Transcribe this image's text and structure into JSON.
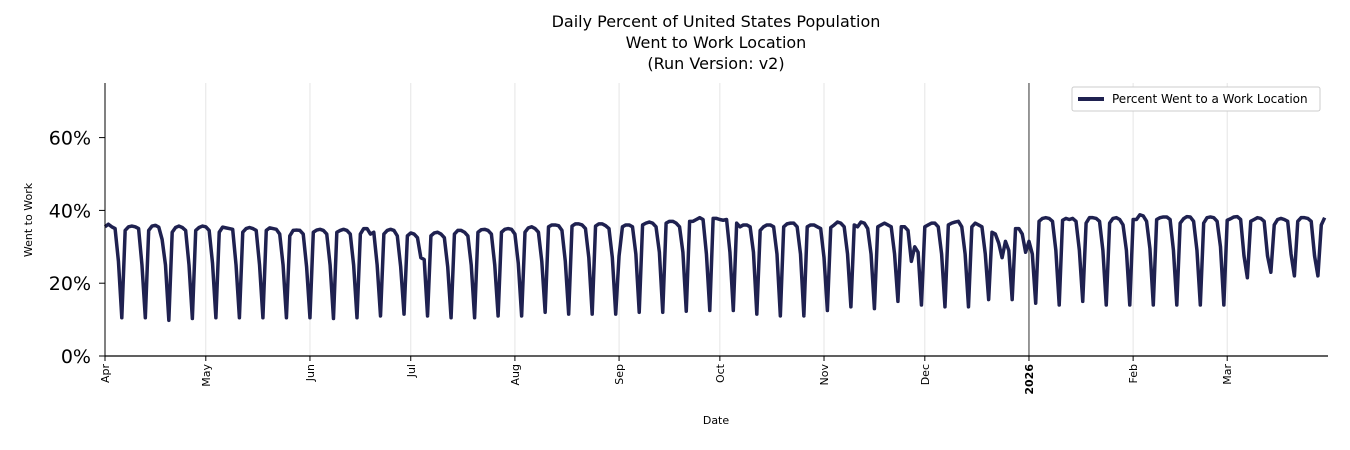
{
  "chart_data": {
    "type": "line",
    "title_lines": [
      "Daily Percent of United States Population",
      "Went to Work Location",
      "(Run Version: v2)"
    ],
    "xlabel": "Date",
    "ylabel": "Went to Work",
    "ylim": [
      0,
      75
    ],
    "yticks": [
      {
        "value": 0,
        "label": "0%"
      },
      {
        "value": 20,
        "label": "20%"
      },
      {
        "value": 40,
        "label": "40%"
      },
      {
        "value": 60,
        "label": "60%"
      }
    ],
    "x_range_days": [
      0,
      364
    ],
    "xticks": [
      {
        "day": 0,
        "label": "Apr",
        "bold": false
      },
      {
        "day": 30,
        "label": "May",
        "bold": false
      },
      {
        "day": 61,
        "label": "Jun",
        "bold": false
      },
      {
        "day": 91,
        "label": "Jul",
        "bold": false
      },
      {
        "day": 122,
        "label": "Aug",
        "bold": false
      },
      {
        "day": 153,
        "label": "Sep",
        "bold": false
      },
      {
        "day": 183,
        "label": "Oct",
        "bold": false
      },
      {
        "day": 214,
        "label": "Nov",
        "bold": false
      },
      {
        "day": 244,
        "label": "Dec",
        "bold": false
      },
      {
        "day": 275,
        "label": "2026",
        "bold": true
      },
      {
        "day": 306,
        "label": "Feb",
        "bold": false
      },
      {
        "day": 334,
        "label": "Mar",
        "bold": false
      }
    ],
    "marker_line_day": 275,
    "grid": "vertical",
    "legend": {
      "position": "top-right",
      "entries": [
        "Percent Went to a Work Location"
      ]
    },
    "series": [
      {
        "name": "Percent Went to a Work Location",
        "color": "#1f2150",
        "start_day": 0,
        "values": [
          35.5,
          36.2,
          35.5,
          35.0,
          26.0,
          10.5,
          34.5,
          35.5,
          35.7,
          35.5,
          35.0,
          25.0,
          10.5,
          34.5,
          35.7,
          35.9,
          35.4,
          32.0,
          25.0,
          9.8,
          34.0,
          35.3,
          35.7,
          35.3,
          34.5,
          25.0,
          10.3,
          34.5,
          35.3,
          35.7,
          35.5,
          34.5,
          25.5,
          10.5,
          34.0,
          35.4,
          35.2,
          35.0,
          34.8,
          25.0,
          10.5,
          34.0,
          35.0,
          35.3,
          35.0,
          34.5,
          25.0,
          10.5,
          34.5,
          35.2,
          35.0,
          34.8,
          33.5,
          25.0,
          10.5,
          33.0,
          34.5,
          34.6,
          34.5,
          33.5,
          24.5,
          10.5,
          34.0,
          34.6,
          34.8,
          34.5,
          33.5,
          25.0,
          10.3,
          34.0,
          34.5,
          34.8,
          34.5,
          33.5,
          25.0,
          10.5,
          33.5,
          35.0,
          35.0,
          33.5,
          34.0,
          25.0,
          11.0,
          33.5,
          34.5,
          34.8,
          34.5,
          33.0,
          24.5,
          11.5,
          33.0,
          33.8,
          33.5,
          32.5,
          27.0,
          26.5,
          11.0,
          33.0,
          33.8,
          34.0,
          33.5,
          32.5,
          24.5,
          10.5,
          33.5,
          34.5,
          34.5,
          34.0,
          33.0,
          25.0,
          10.5,
          34.0,
          34.7,
          34.8,
          34.5,
          33.5,
          25.0,
          11.0,
          34.0,
          34.8,
          35.0,
          34.8,
          33.5,
          25.5,
          11.0,
          34.0,
          35.2,
          35.5,
          35.0,
          34.0,
          26.0,
          12.0,
          35.5,
          36.0,
          36.0,
          35.8,
          34.5,
          26.0,
          11.5,
          35.7,
          36.3,
          36.3,
          36.0,
          35.0,
          27.0,
          11.5,
          35.7,
          36.3,
          36.3,
          35.8,
          35.0,
          27.0,
          11.5,
          27.5,
          35.5,
          36.0,
          36.0,
          35.5,
          28.0,
          12.0,
          36.0,
          36.5,
          36.8,
          36.5,
          35.5,
          28.5,
          12.0,
          36.5,
          37.0,
          37.0,
          36.5,
          35.5,
          28.5,
          12.3,
          37.0,
          37.0,
          37.5,
          38.0,
          37.5,
          28.0,
          12.5,
          37.8,
          37.8,
          37.5,
          37.3,
          37.5,
          28.5,
          12.5,
          36.5,
          35.5,
          36.0,
          36.0,
          35.5,
          28.5,
          11.5,
          34.5,
          35.5,
          36.0,
          36.0,
          35.5,
          28.0,
          11.0,
          35.5,
          36.3,
          36.5,
          36.5,
          35.5,
          28.0,
          11.0,
          35.5,
          36.0,
          36.0,
          35.5,
          35.0,
          27.0,
          12.5,
          35.3,
          36.0,
          36.8,
          36.5,
          35.5,
          28.0,
          13.5,
          36.0,
          35.5,
          36.8,
          36.5,
          35.0,
          28.0,
          13.0,
          35.5,
          36.0,
          36.5,
          36.0,
          35.5,
          28.0,
          15.0,
          35.5,
          35.5,
          34.5,
          26.0,
          30.0,
          28.5,
          14.0,
          35.5,
          36.0,
          36.5,
          36.5,
          35.5,
          28.0,
          13.5,
          36.0,
          36.5,
          36.8,
          37.0,
          35.5,
          28.0,
          13.5,
          35.5,
          36.5,
          36.0,
          35.5,
          28.0,
          15.5,
          34.0,
          33.5,
          31.0,
          27.0,
          31.5,
          29.0,
          15.5,
          35.0,
          35.0,
          33.5,
          28.5,
          31.5,
          28.0,
          14.5,
          37.0,
          37.8,
          38.0,
          37.8,
          37.0,
          29.0,
          14.0,
          37.3,
          37.8,
          37.5,
          37.8,
          37.0,
          29.0,
          15.0,
          36.5,
          38.0,
          38.0,
          37.8,
          37.0,
          29.0,
          14.0,
          36.5,
          37.8,
          38.0,
          37.5,
          36.0,
          29.0,
          14.0,
          37.5,
          37.5,
          38.8,
          38.5,
          37.0,
          29.5,
          14.0,
          37.5,
          38.0,
          38.2,
          38.2,
          37.5,
          29.0,
          14.0,
          36.5,
          37.7,
          38.3,
          38.2,
          37.0,
          29.0,
          14.0,
          36.5,
          38.0,
          38.2,
          38.0,
          37.0,
          30.0,
          14.0,
          37.3,
          37.7,
          38.2,
          38.3,
          37.5,
          27.5,
          21.5,
          37.0,
          37.5,
          38.0,
          37.8,
          37.0,
          27.5,
          23.0,
          36.0,
          37.5,
          37.8,
          37.5,
          37.0,
          28.0,
          22.0,
          37.0,
          38.0,
          38.0,
          37.8,
          37.0,
          27.5,
          22.0,
          36.0,
          38.0
        ]
      }
    ]
  }
}
